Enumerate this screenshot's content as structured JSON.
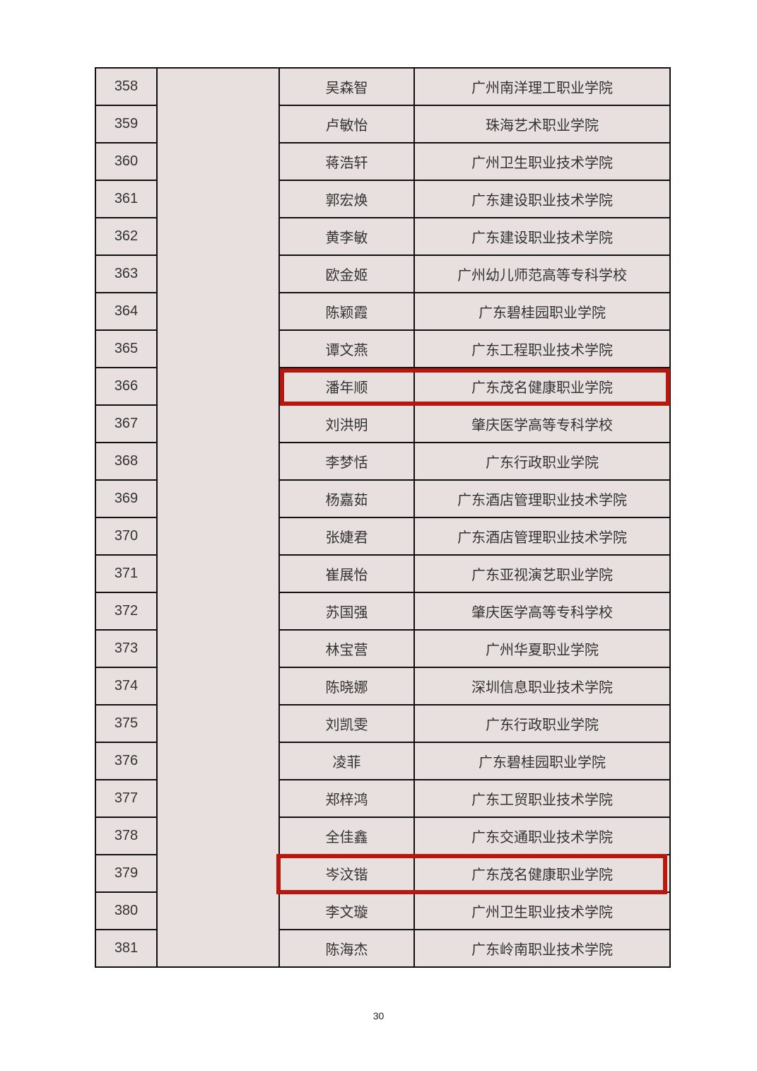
{
  "table": {
    "rows": [
      {
        "no": "358",
        "name": "吴森智",
        "school": "广州南洋理工职业学院"
      },
      {
        "no": "359",
        "name": "卢敏怡",
        "school": "珠海艺术职业学院"
      },
      {
        "no": "360",
        "name": "蒋浩轩",
        "school": "广州卫生职业技术学院"
      },
      {
        "no": "361",
        "name": "郭宏焕",
        "school": "广东建设职业技术学院"
      },
      {
        "no": "362",
        "name": "黄李敏",
        "school": "广东建设职业技术学院"
      },
      {
        "no": "363",
        "name": "欧金姬",
        "school": "广州幼儿师范高等专科学校"
      },
      {
        "no": "364",
        "name": "陈颖霞",
        "school": "广东碧桂园职业学院"
      },
      {
        "no": "365",
        "name": "谭文燕",
        "school": "广东工程职业技术学院"
      },
      {
        "no": "366",
        "name": "潘年顺",
        "school": "广东茂名健康职业学院",
        "highlighted": true
      },
      {
        "no": "367",
        "name": "刘洪明",
        "school": "肇庆医学高等专科学校"
      },
      {
        "no": "368",
        "name": "李梦恬",
        "school": "广东行政职业学院"
      },
      {
        "no": "369",
        "name": "杨嘉茹",
        "school": "广东酒店管理职业技术学院"
      },
      {
        "no": "370",
        "name": "张婕君",
        "school": "广东酒店管理职业技术学院"
      },
      {
        "no": "371",
        "name": "崔展怡",
        "school": "广东亚视演艺职业学院"
      },
      {
        "no": "372",
        "name": "苏国强",
        "school": "肇庆医学高等专科学校"
      },
      {
        "no": "373",
        "name": "林宝营",
        "school": "广州华夏职业学院"
      },
      {
        "no": "374",
        "name": "陈晓娜",
        "school": "深圳信息职业技术学院"
      },
      {
        "no": "375",
        "name": "刘凯雯",
        "school": "广东行政职业学院"
      },
      {
        "no": "376",
        "name": "凌菲",
        "school": "广东碧桂园职业学院"
      },
      {
        "no": "377",
        "name": "郑梓鸿",
        "school": "广东工贸职业技术学院"
      },
      {
        "no": "378",
        "name": "全佳鑫",
        "school": "广东交通职业技术学院"
      },
      {
        "no": "379",
        "name": "岑汶锴",
        "school": "广东茂名健康职业学院",
        "highlighted": true
      },
      {
        "no": "380",
        "name": "李文璇",
        "school": "广州卫生职业技术学院"
      },
      {
        "no": "381",
        "name": "陈海杰",
        "school": "广东岭南职业技术学院"
      }
    ]
  },
  "highlight_color": "#b8170d",
  "page_number": "30"
}
